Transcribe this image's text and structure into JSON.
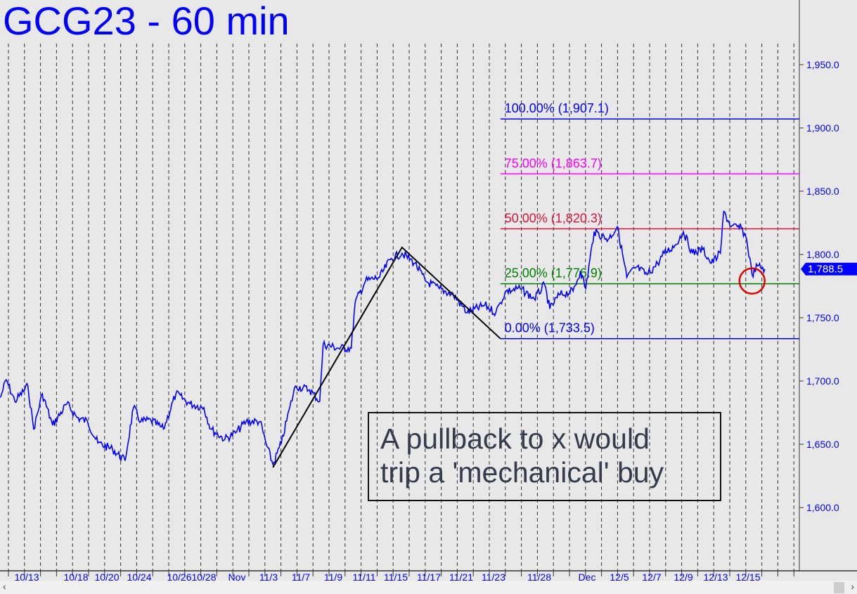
{
  "title": "GCG23 - 60 min",
  "annotation": {
    "line1": "A pullback to x would",
    "line2": "trip a 'mechanical' buy"
  },
  "colors": {
    "price": "#0000ff",
    "fib100": "#0000ff",
    "fib75": "#ff00ff",
    "fib50": "#dc143c",
    "fib25": "#008000",
    "fib0": "#0000ff",
    "circle": "#e00000",
    "zigzag": "#000000",
    "background": "#e8e8e8"
  },
  "chart_data": {
    "type": "line",
    "title": "GCG23 - 60 min",
    "ylim": [
      1550,
      1990
    ],
    "y_ticks": [
      "1,600.0",
      "1,650.0",
      "1,700.0",
      "1,750.0",
      "1,800.0",
      "1,850.0",
      "1,900.0",
      "1,950.0"
    ],
    "y_tick_values": [
      1600,
      1650,
      1700,
      1750,
      1800,
      1850,
      1900,
      1950
    ],
    "x_ticks": [
      "10/13",
      "10/18",
      "10/20",
      "10/24",
      "10/26",
      "10/28",
      "Nov",
      "11/3",
      "11/7",
      "11/9",
      "11/11",
      "11/15",
      "11/17",
      "11/21",
      "11/23",
      "11/28",
      "Dec",
      "12/5",
      "12/7",
      "12/9",
      "12/13",
      "12/15"
    ],
    "grid": "vertical dashed",
    "last_price": {
      "value": 1788.5,
      "label": "1,788.5"
    },
    "series": [
      {
        "points": [
          [
            "10/10 08:00",
            1687
          ],
          [
            "10/10 22:00",
            1701
          ],
          [
            "10/11 19:00",
            1684
          ],
          [
            "10/13 03:00",
            1696
          ],
          [
            "10/13 17:00",
            1662
          ],
          [
            "10/14 14:00",
            1690
          ],
          [
            "10/15 15:00",
            1665
          ],
          [
            "10/17 02:00",
            1682
          ],
          [
            "10/18 02:00",
            1671
          ],
          [
            "10/18 18:00",
            1668
          ],
          [
            "10/19 10:00",
            1651
          ],
          [
            "10/20 17:00",
            1646
          ],
          [
            "10/22 06:00",
            1637
          ],
          [
            "10/23 07:00",
            1679
          ],
          [
            "10/24 02:00",
            1668
          ],
          [
            "10/24 14:00",
            1669
          ],
          [
            "10/25 05:00",
            1662
          ],
          [
            "10/25 20:00",
            1690
          ],
          [
            "10/26 21:00",
            1682
          ],
          [
            "10/28 00:00",
            1679
          ],
          [
            "10/28 20:00",
            1662
          ],
          [
            "10/30 13:00",
            1654
          ],
          [
            "10/31 20:00",
            1659
          ],
          [
            "11/01 14:00",
            1668
          ],
          [
            "11/02 11:00",
            1668
          ],
          [
            "11/02 20:00",
            1651
          ],
          [
            "11/03 13:00",
            1634
          ],
          [
            "11/04 14:00",
            1651
          ],
          [
            "11/05 15:00",
            1679
          ],
          [
            "11/06 08:00",
            1696
          ],
          [
            "11/07 13:00",
            1693
          ],
          [
            "11/08 04:00",
            1684
          ],
          [
            "11/08 09:00",
            1729
          ],
          [
            "11/09 07:00",
            1726
          ],
          [
            "11/10 04:00",
            1726
          ],
          [
            "11/10 10:00",
            1762
          ],
          [
            "11/11 04:00",
            1779
          ],
          [
            "11/12 23:00",
            1782
          ],
          [
            "11/14 07:00",
            1796
          ],
          [
            "11/15 09:00",
            1801
          ],
          [
            "11/16 04:00",
            1793
          ],
          [
            "11/16 19:00",
            1779
          ],
          [
            "11/18 07:00",
            1773
          ],
          [
            "11/20 01:00",
            1768
          ],
          [
            "11/21 09:00",
            1754
          ],
          [
            "11/22 11:00",
            1760
          ],
          [
            "11/23 06:00",
            1754
          ],
          [
            "11/23 18:00",
            1762
          ],
          [
            "11/24 09:00",
            1771
          ],
          [
            "11/25 22:00",
            1773
          ],
          [
            "11/27 11:00",
            1765
          ],
          [
            "11/28 08:00",
            1776
          ],
          [
            "11/28 16:00",
            1757
          ],
          [
            "11/29 06:00",
            1768
          ],
          [
            "11/30 03:00",
            1771
          ],
          [
            "11/30 14:00",
            1787
          ],
          [
            "11/30 22:00",
            1773
          ],
          [
            "12/01 21:00",
            1818
          ],
          [
            "12/03 15:00",
            1812
          ],
          [
            "12/04 18:00",
            1822
          ],
          [
            "12/05 11:00",
            1782
          ],
          [
            "12/06 01:00",
            1790
          ],
          [
            "12/06 17:00",
            1784
          ],
          [
            "12/07 09:00",
            1793
          ],
          [
            "12/07 19:00",
            1801
          ],
          [
            "12/08 11:00",
            1807
          ],
          [
            "12/09 00:00",
            1818
          ],
          [
            "12/10 03:00",
            1801
          ],
          [
            "12/11 10:00",
            1804
          ],
          [
            "12/12 11:00",
            1793
          ],
          [
            "12/13 07:00",
            1801
          ],
          [
            "12/13 12:00",
            1834
          ],
          [
            "12/13 23:00",
            1822
          ],
          [
            "12/14 14:00",
            1821
          ],
          [
            "12/14 22:00",
            1812
          ],
          [
            "12/15 06:00",
            1784
          ],
          [
            "12/15 14:00",
            1791
          ],
          [
            "12/16 01:00",
            1788.5
          ]
        ]
      }
    ],
    "zigzag": [
      [
        "11/03 13:00",
        1631.7
      ],
      [
        "11/15 09:00",
        1805.6
      ],
      [
        "11/23 18:00",
        1733.5
      ]
    ],
    "fib_levels": [
      {
        "label": "100.00% (1,907.1)",
        "value": 1907.1,
        "color": "#0000ff"
      },
      {
        "label": "75.00% (1,863.7)",
        "value": 1863.7,
        "color": "#ff00ff"
      },
      {
        "label": "50.00% (1,820.3)",
        "value": 1820.3,
        "color": "#dc143c"
      },
      {
        "label": "25.00% (1,776.9)",
        "value": 1776.9,
        "color": "#008000"
      },
      {
        "label": "0.00% (1,733.5)",
        "value": 1733.5,
        "color": "#0000ff"
      }
    ],
    "fib_start": "11/23 18:00",
    "circle_marker": {
      "date": "12/15 06:00",
      "value": 1779,
      "color": "#e00000"
    }
  },
  "scrollbar": {
    "left_icon": "chevron-left-icon",
    "right_icon": "chevron-right-icon",
    "left_glyph": "‹",
    "right_glyph": "›"
  }
}
